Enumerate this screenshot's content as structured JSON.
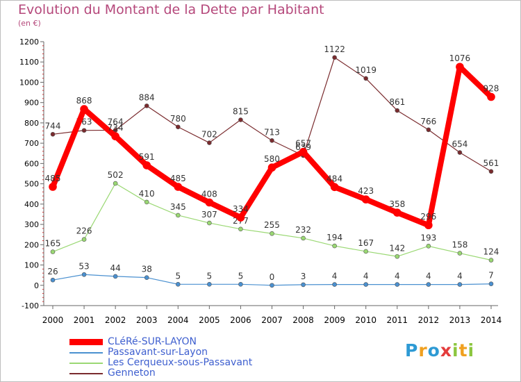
{
  "title": "Evolution du Montant de la Dette par Habitant",
  "unit": "(en €)",
  "logo": {
    "text": "Proxiti",
    "letters": [
      "P",
      "r",
      "o",
      "x",
      "i",
      "t",
      "i"
    ],
    "colors": [
      "#2d9ad4",
      "#f0a020",
      "#2d9ad4",
      "#e43c3c",
      "#8cc63f",
      "#f0a020",
      "#8cc63f"
    ]
  },
  "chart_data": {
    "type": "line",
    "x": [
      "2000",
      "2001",
      "2002",
      "2003",
      "2004",
      "2005",
      "2006",
      "2007",
      "2008",
      "2009",
      "2010",
      "2011",
      "2012",
      "2013",
      "2014"
    ],
    "ylim": [
      -100,
      1200
    ],
    "yticks": [
      "-100",
      "0",
      "100",
      "200",
      "300",
      "400",
      "500",
      "600",
      "700",
      "800",
      "900",
      "1000",
      "1100",
      "1200"
    ],
    "grid": false,
    "legend_position": "bottom-left",
    "series": [
      {
        "name": "Genneton",
        "color": "#7a2b2e",
        "width": 1.2,
        "values": [
          744,
          763,
          764,
          884,
          780,
          702,
          815,
          713,
          639,
          1122,
          1019,
          861,
          766,
          654,
          561
        ],
        "labels": [
          "744",
          "763",
          "764",
          "884",
          "780",
          "702",
          "815",
          "713",
          "639",
          "1122",
          "1019",
          "861",
          "766",
          "654",
          "561"
        ]
      },
      {
        "name": "Les Cerqueux-sous-Passavant",
        "color": "#9ad873",
        "width": 1.2,
        "values": [
          165,
          226,
          502,
          410,
          345,
          307,
          277,
          255,
          232,
          194,
          167,
          142,
          193,
          158,
          124
        ],
        "labels": [
          "165",
          "226",
          "502",
          "410",
          "345",
          "307",
          "277",
          "255",
          "232",
          "194",
          "167",
          "142",
          "193",
          "158",
          "124"
        ]
      },
      {
        "name": "Passavant-sur-Layon",
        "color": "#4a90d0",
        "width": 1.2,
        "values": [
          26,
          53,
          44,
          38,
          5,
          5,
          5,
          0,
          3,
          4,
          4,
          4,
          4,
          4,
          7
        ],
        "labels": [
          "26",
          "53",
          "44",
          "38",
          "5",
          "5",
          "5",
          "0",
          "3",
          "4",
          "4",
          "4",
          "4",
          "4",
          "7"
        ]
      },
      {
        "name": "CLéRé-SUR-LAYON",
        "color": "#ff0000",
        "width": 8,
        "values": [
          485,
          868,
          734,
          591,
          485,
          408,
          334,
          580,
          657,
          484,
          423,
          358,
          296,
          1076,
          928
        ],
        "labels": [
          "485",
          "868",
          "734",
          "591",
          "485",
          "408",
          "334",
          "580",
          "657",
          "484",
          "423",
          "358",
          "296",
          "1076",
          "928"
        ]
      }
    ],
    "legend_order": [
      "CLéRé-SUR-LAYON",
      "Passavant-sur-Layon",
      "Les Cerqueux-sous-Passavant",
      "Genneton"
    ]
  }
}
